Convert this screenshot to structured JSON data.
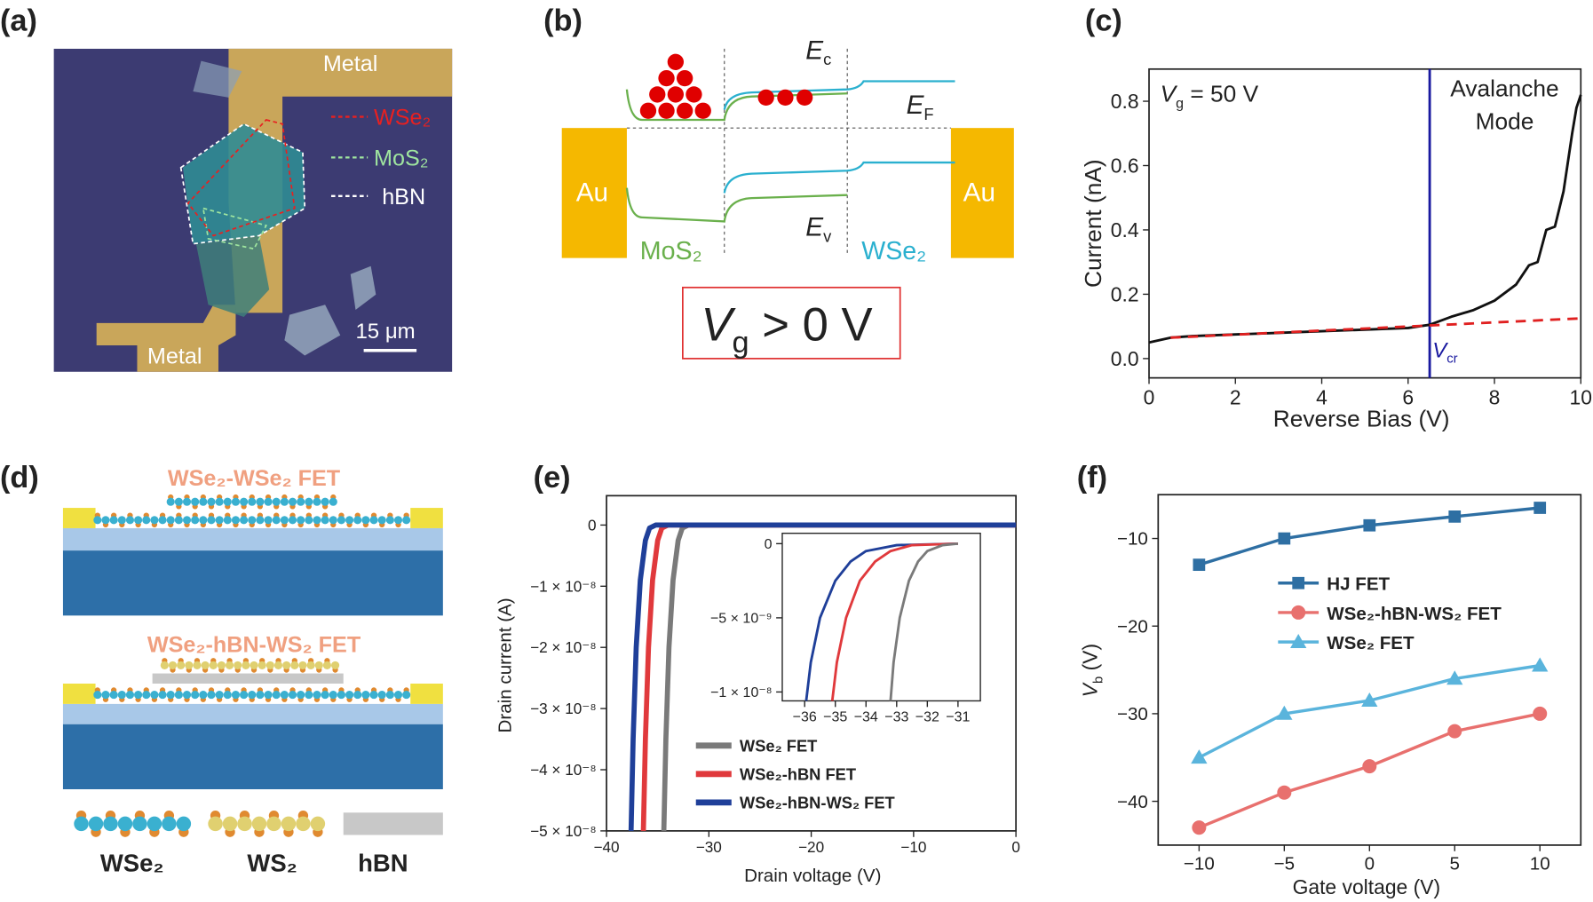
{
  "panel_labels": [
    "(a)",
    "(b)",
    "(c)",
    "(d)",
    "(e)",
    "(f)"
  ],
  "panel_a": {
    "metal_top": "Metal",
    "metal_bottom": "Metal",
    "legend": [
      "WSe₂",
      "MoS₂",
      "hBN"
    ],
    "scale_bar": "15 μm"
  },
  "panel_b": {
    "contacts": [
      "Au",
      "Au"
    ],
    "materials": [
      "MoS₂",
      "WSe₂"
    ],
    "levels": [
      {
        "base": "E",
        "sub": "c"
      },
      {
        "base": "E",
        "sub": "F"
      },
      {
        "base": "E",
        "sub": "v"
      }
    ],
    "condition": {
      "base": "V",
      "sub": "g",
      "rest": " > 0 V"
    }
  },
  "panel_d": {
    "devices": [
      "WSe₂-WSe₂ FET",
      "WSe₂-hBN-WS₂ FET"
    ],
    "legend": [
      "WSe₂",
      "WS₂",
      "hBN"
    ]
  },
  "chart_data": [
    {
      "type": "line",
      "xlabel": "Reverse Bias (V)",
      "ylabel": "Current (nA)",
      "xlim": [
        0,
        10
      ],
      "ylim": [
        -0.06,
        0.9
      ],
      "xticks": [
        0,
        2,
        4,
        6,
        8,
        10
      ],
      "yticks": [
        {
          "value": 0,
          "label": "0.0"
        },
        0.2,
        0.4,
        0.6,
        0.8
      ],
      "series": [
        {
          "color": "#111111",
          "x": [
            0,
            0.5,
            1,
            2,
            3,
            4,
            5,
            6,
            6.5,
            7,
            7.5,
            8,
            8.5,
            8.8,
            9,
            9.2,
            9.4,
            9.6,
            9.8,
            9.9,
            10
          ],
          "values": [
            0.05,
            0.065,
            0.07,
            0.075,
            0.08,
            0.085,
            0.09,
            0.095,
            0.105,
            0.13,
            0.15,
            0.18,
            0.23,
            0.29,
            0.3,
            0.4,
            0.41,
            0.52,
            0.7,
            0.78,
            0.82
          ]
        },
        {
          "color": "#e02020",
          "dashed": true,
          "x": [
            0.5,
            10
          ],
          "values": [
            0.065,
            0.125
          ]
        }
      ],
      "vline": {
        "x": 6.5,
        "color": "#1a1aa0"
      },
      "annotations": [
        {
          "base": "V",
          "sub": "g",
          "rest": " = 50 V"
        },
        "Avalanche",
        "Mode",
        {
          "base": "V",
          "sub": "cr"
        }
      ]
    },
    {
      "type": "line",
      "xlabel": "Drain voltage (V)",
      "ylabel": "Drain  current (A)",
      "xlim": [
        -40,
        0
      ],
      "ylim": [
        -5e-08,
        4.8e-09
      ],
      "xticks": [
        {
          "value": -40,
          "label": "−40"
        },
        {
          "value": -30,
          "label": "−30"
        },
        {
          "value": -20,
          "label": "−20"
        },
        {
          "value": -10,
          "label": "−10"
        },
        0
      ],
      "yticks": [
        0,
        {
          "value": -1e-08,
          "label": "−1 × 10⁻⁸"
        },
        {
          "value": -2e-08,
          "label": "−2 × 10⁻⁸"
        },
        {
          "value": -3e-08,
          "label": "−3 × 10⁻⁸"
        },
        {
          "value": -4e-08,
          "label": "−4 × 10⁻⁸"
        },
        {
          "value": -5e-08,
          "label": "−5 × 10⁻⁸"
        }
      ],
      "series": [
        {
          "name": "WSe₂ FET",
          "color": "#7a7a7a",
          "x": [
            -34.4,
            -34.2,
            -33.9,
            -33.5,
            -33.0,
            -32.6,
            -32,
            0
          ],
          "values": [
            -5e-08,
            -3.5e-08,
            -2e-08,
            -9e-09,
            -2.5e-09,
            -5e-10,
            0,
            0
          ]
        },
        {
          "name": "WSe₂-hBN FET",
          "color": "#e0393c",
          "x": [
            -36.4,
            -36.2,
            -35.9,
            -35.5,
            -35.0,
            -34.6,
            -34,
            0
          ],
          "values": [
            -5e-08,
            -3.5e-08,
            -2e-08,
            -9e-09,
            -2.5e-09,
            -5e-10,
            0,
            0
          ]
        },
        {
          "name": "WSe₂-hBN-WS₂ FET",
          "color": "#1f3f99",
          "x": [
            -37.6,
            -37.4,
            -37.1,
            -36.7,
            -36.2,
            -35.8,
            -35.2,
            0
          ],
          "values": [
            -5e-08,
            -3.5e-08,
            -2e-08,
            -9e-09,
            -2.5e-09,
            -5e-10,
            0,
            0
          ]
        }
      ]
    },
    {
      "type": "line",
      "xlim": [
        -36.73,
        -30.27
      ],
      "ylim": [
        -1.06e-08,
        7e-10
      ],
      "xticks": [
        {
          "value": -36,
          "label": "−36"
        },
        {
          "value": -35,
          "label": "−35"
        },
        {
          "value": -34,
          "label": "−34"
        },
        {
          "value": -33,
          "label": "−33"
        },
        {
          "value": -32,
          "label": "−32"
        },
        {
          "value": -31,
          "label": "−31"
        }
      ],
      "yticks": [
        0,
        {
          "value": -5e-09,
          "label": "−5 × 10⁻⁹"
        },
        {
          "value": -1e-08,
          "label": "−1 × 10⁻⁸"
        }
      ],
      "series": [
        {
          "color": "#1f3f99",
          "x": [
            -35.95,
            -35.8,
            -35.5,
            -35,
            -34.5,
            -34,
            -33,
            -31
          ],
          "values": [
            -1.06e-08,
            -8e-09,
            -5e-09,
            -2.5e-09,
            -1.2e-09,
            -5e-10,
            -1e-10,
            0
          ]
        },
        {
          "color": "#e0393c",
          "x": [
            -35.1,
            -34.95,
            -34.65,
            -34.2,
            -33.7,
            -33.2,
            -32.5,
            -31
          ],
          "values": [
            -1.06e-08,
            -8e-09,
            -5e-09,
            -2.5e-09,
            -1.2e-09,
            -5e-10,
            -1e-10,
            0
          ]
        },
        {
          "color": "#7a7a7a",
          "x": [
            -33.2,
            -33.1,
            -32.9,
            -32.6,
            -32.3,
            -32,
            -31.5,
            -31
          ],
          "values": [
            -1.06e-08,
            -8e-09,
            -5e-09,
            -2.5e-09,
            -1.2e-09,
            -5e-10,
            -1e-10,
            0
          ]
        }
      ]
    },
    {
      "type": "line",
      "xlabel": "Gate voltage (V)",
      "ylabel": {
        "base": "V",
        "sub": "b",
        "rest": " (V)"
      },
      "xlim": [
        -12.4,
        12.4
      ],
      "ylim": [
        -45,
        -5
      ],
      "x": [
        -10,
        -5,
        0,
        5,
        10
      ],
      "xticks": [
        {
          "value": -10,
          "label": "−10"
        },
        {
          "value": -5,
          "label": "−5"
        },
        0,
        5,
        10
      ],
      "yticks": [
        {
          "value": -10,
          "label": "−10"
        },
        {
          "value": -20,
          "label": "−20"
        },
        {
          "value": -30,
          "label": "−30"
        },
        {
          "value": -40,
          "label": "−40"
        }
      ],
      "series": [
        {
          "name": "HJ FET",
          "color": "#2e6fa3",
          "marker": "square",
          "values": [
            -13,
            -10,
            -8.5,
            -7.5,
            -6.5
          ]
        },
        {
          "name": "WSe₂-hBN-WS₂ FET",
          "color": "#e8706e",
          "marker": "circle",
          "values": [
            -43,
            -39,
            -36,
            -32,
            -30
          ]
        },
        {
          "name": "WSe₂ FET",
          "color": "#5ab4dc",
          "marker": "triangle",
          "values": [
            -35,
            -30,
            -28.5,
            -26,
            -24.5
          ]
        }
      ]
    }
  ]
}
